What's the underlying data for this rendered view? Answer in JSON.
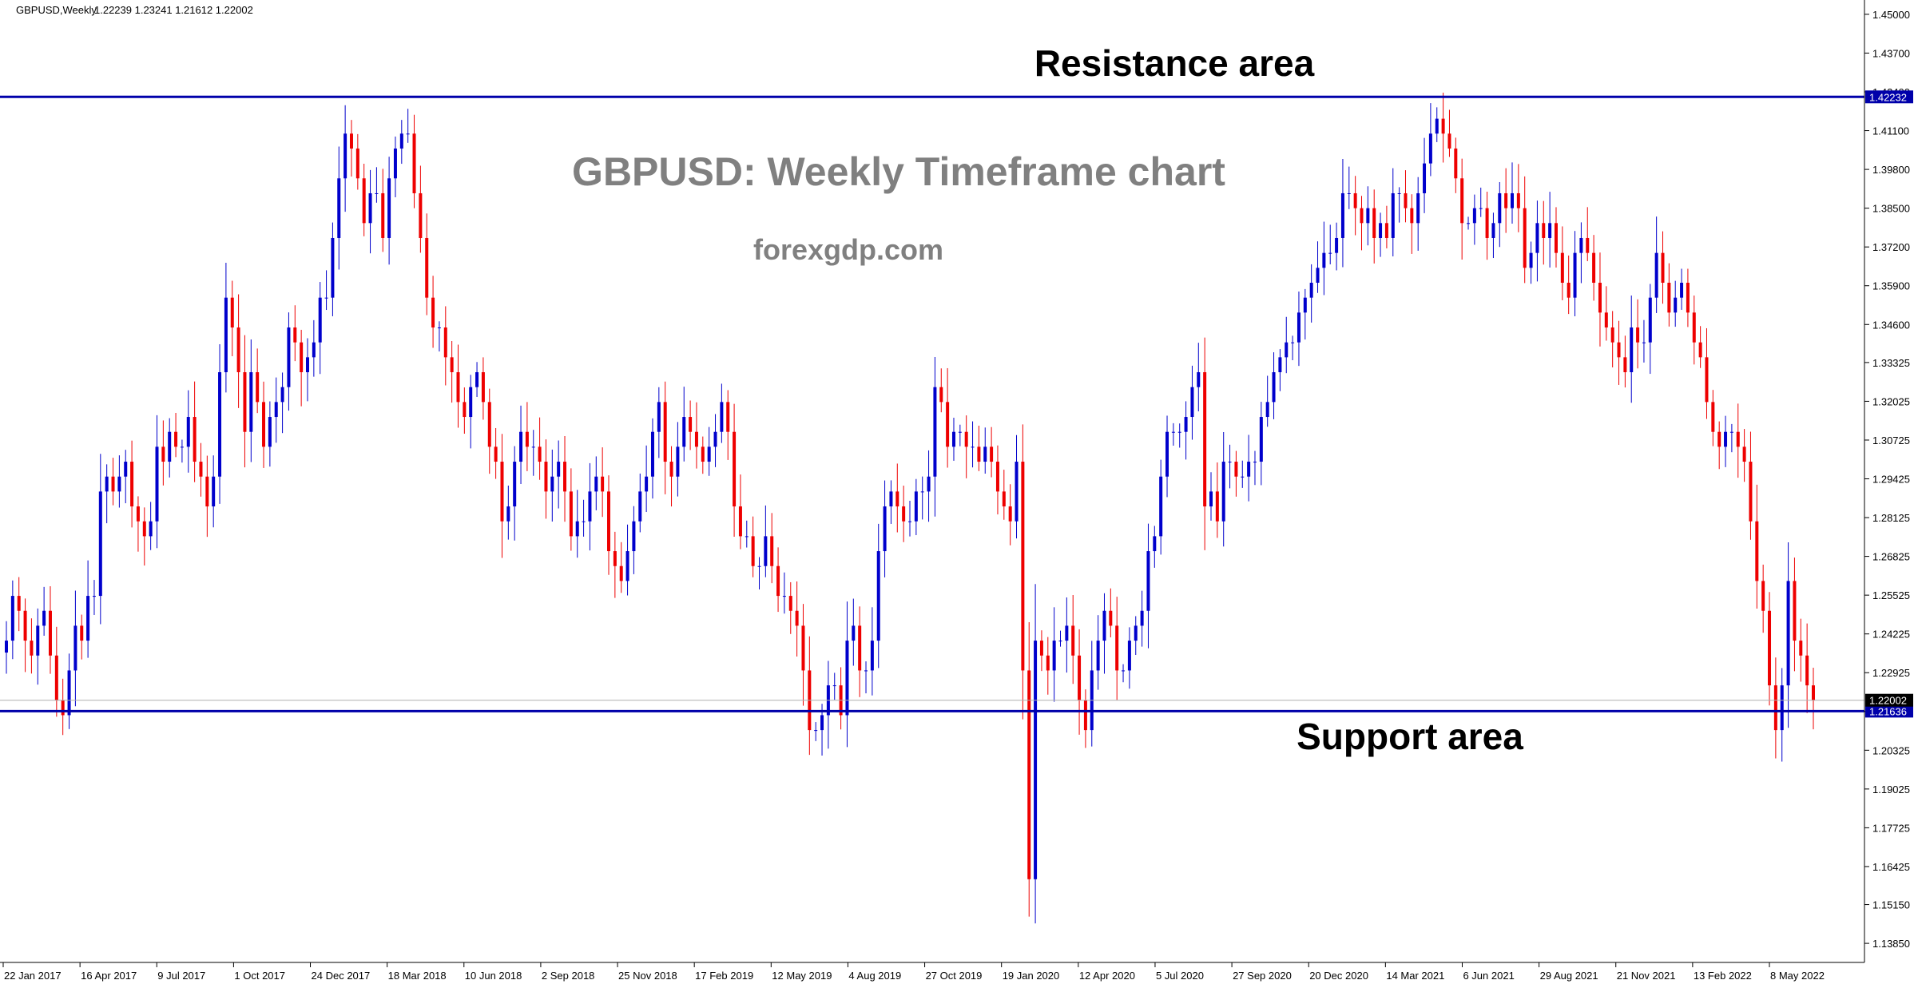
{
  "header": {
    "symbol_tf": "GBPUSD,Weekly",
    "ohlc": "1.22239 1.23241 1.21612 1.22002"
  },
  "annotations": {
    "main_title": "GBPUSD: Weekly Timeframe chart",
    "site": "forexgdp.com",
    "resistance_label": "Resistance area",
    "support_label": "Support area"
  },
  "colors": {
    "background": "#ffffff",
    "axis": "#000000",
    "bull": "#0000cc",
    "bear": "#ee0000",
    "hline": "#0000aa",
    "price_tag_bg": "#0000aa",
    "price_tag_current_bg": "#000000",
    "title_color": "#808080",
    "site_color": "#808080"
  },
  "chart_data": {
    "type": "candlestick",
    "title": "GBPUSD: Weekly Timeframe chart",
    "timeframe": "Weekly",
    "ylim": [
      1.1321,
      1.4548
    ],
    "price_ticks": [
      "1.45000",
      "1.43700",
      "1.42400",
      "1.41100",
      "1.39800",
      "1.38500",
      "1.37200",
      "1.35900",
      "1.34600",
      "1.33325",
      "1.32025",
      "1.30725",
      "1.29425",
      "1.28125",
      "1.26825",
      "1.25525",
      "1.24225",
      "1.22925",
      "1.21625",
      "1.20325",
      "1.19025",
      "1.17725",
      "1.16425",
      "1.15150",
      "1.13850"
    ],
    "date_ticks": [
      "22 Jan 2017",
      "16 Apr 2017",
      "9 Jul 2017",
      "1 Oct 2017",
      "24 Dec 2017",
      "18 Mar 2018",
      "10 Jun 2018",
      "2 Sep 2018",
      "25 Nov 2018",
      "17 Feb 2019",
      "12 May 2019",
      "4 Aug 2019",
      "27 Oct 2019",
      "19 Jan 2020",
      "12 Apr 2020",
      "5 Jul 2020",
      "27 Sep 2020",
      "20 Dec 2020",
      "14 Mar 2021",
      "6 Jun 2021",
      "29 Aug 2021",
      "21 Nov 2021",
      "13 Feb 2022",
      "8 May 2022"
    ],
    "levels": [
      {
        "name": "Resistance area",
        "price": 1.42232,
        "tag": "1.42232"
      },
      {
        "name": "Support area",
        "price": 1.21636,
        "tag": "1.21636"
      }
    ],
    "current_price": {
      "price": 1.22002,
      "tag": "1.22002"
    },
    "closes": [
      1.24,
      1.255,
      1.25,
      1.24,
      1.235,
      1.245,
      1.25,
      1.235,
      1.22,
      1.215,
      1.23,
      1.245,
      1.24,
      1.255,
      1.255,
      1.29,
      1.295,
      1.29,
      1.295,
      1.3,
      1.285,
      1.28,
      1.275,
      1.28,
      1.305,
      1.3,
      1.31,
      1.305,
      1.305,
      1.315,
      1.3,
      1.295,
      1.285,
      1.295,
      1.33,
      1.355,
      1.345,
      1.33,
      1.31,
      1.33,
      1.32,
      1.305,
      1.315,
      1.32,
      1.325,
      1.345,
      1.34,
      1.33,
      1.335,
      1.34,
      1.355,
      1.355,
      1.375,
      1.395,
      1.41,
      1.405,
      1.395,
      1.38,
      1.39,
      1.39,
      1.375,
      1.395,
      1.405,
      1.41,
      1.41,
      1.39,
      1.375,
      1.355,
      1.345,
      1.345,
      1.335,
      1.33,
      1.32,
      1.315,
      1.325,
      1.33,
      1.32,
      1.305,
      1.3,
      1.28,
      1.285,
      1.3,
      1.31,
      1.305,
      1.305,
      1.3,
      1.29,
      1.295,
      1.3,
      1.29,
      1.275,
      1.28,
      1.28,
      1.29,
      1.295,
      1.29,
      1.27,
      1.265,
      1.26,
      1.27,
      1.28,
      1.29,
      1.295,
      1.31,
      1.32,
      1.3,
      1.295,
      1.305,
      1.315,
      1.31,
      1.305,
      1.3,
      1.305,
      1.31,
      1.32,
      1.31,
      1.285,
      1.275,
      1.275,
      1.265,
      1.265,
      1.275,
      1.265,
      1.255,
      1.255,
      1.25,
      1.245,
      1.23,
      1.21,
      1.21,
      1.215,
      1.225,
      1.225,
      1.215,
      1.24,
      1.245,
      1.23,
      1.23,
      1.24,
      1.27,
      1.285,
      1.29,
      1.285,
      1.28,
      1.28,
      1.29,
      1.29,
      1.295,
      1.325,
      1.32,
      1.305,
      1.31,
      1.31,
      1.305,
      1.305,
      1.3,
      1.305,
      1.3,
      1.29,
      1.285,
      1.28,
      1.3,
      1.23,
      1.16,
      1.24,
      1.235,
      1.23,
      1.24,
      1.24,
      1.245,
      1.235,
      1.22,
      1.21,
      1.23,
      1.24,
      1.25,
      1.245,
      1.23,
      1.23,
      1.24,
      1.245,
      1.25,
      1.27,
      1.275,
      1.295,
      1.31,
      1.31,
      1.31,
      1.315,
      1.325,
      1.33,
      1.285,
      1.29,
      1.28,
      1.3,
      1.3,
      1.295,
      1.295,
      1.3,
      1.3,
      1.315,
      1.32,
      1.33,
      1.335,
      1.34,
      1.34,
      1.35,
      1.355,
      1.36,
      1.365,
      1.37,
      1.37,
      1.375,
      1.39,
      1.39,
      1.385,
      1.38,
      1.385,
      1.375,
      1.38,
      1.375,
      1.39,
      1.39,
      1.385,
      1.38,
      1.39,
      1.4,
      1.41,
      1.415,
      1.41,
      1.405,
      1.395,
      1.38,
      1.38,
      1.385,
      1.385,
      1.375,
      1.38,
      1.39,
      1.385,
      1.39,
      1.385,
      1.365,
      1.37,
      1.38,
      1.375,
      1.38,
      1.37,
      1.36,
      1.355,
      1.37,
      1.375,
      1.37,
      1.36,
      1.35,
      1.345,
      1.34,
      1.335,
      1.33,
      1.345,
      1.34,
      1.34,
      1.355,
      1.37,
      1.36,
      1.35,
      1.355,
      1.36,
      1.35,
      1.34,
      1.335,
      1.32,
      1.31,
      1.305,
      1.31,
      1.31,
      1.305,
      1.3,
      1.28,
      1.26,
      1.25,
      1.225,
      1.21,
      1.225,
      1.26,
      1.24,
      1.235,
      1.225,
      1.22
    ]
  }
}
